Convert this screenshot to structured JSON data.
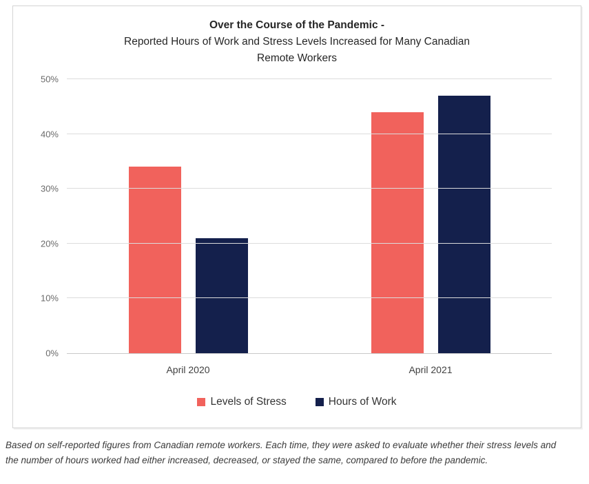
{
  "chart_data": {
    "type": "bar",
    "title_line1": "Over the Course of the Pandemic -",
    "title_line2": "Reported Hours of Work and Stress Levels Increased for Many Canadian",
    "title_line3": "Remote Workers",
    "categories": [
      "April 2020",
      "April 2021"
    ],
    "series": [
      {
        "name": "Levels of Stress",
        "color": "#f1625c",
        "values": [
          34,
          44
        ]
      },
      {
        "name": "Hours of Work",
        "color": "#14204c",
        "values": [
          21,
          47
        ]
      }
    ],
    "ylim": [
      0,
      50
    ],
    "yticks": [
      0,
      10,
      20,
      30,
      40,
      50
    ],
    "ytick_labels": [
      "0%",
      "10%",
      "20%",
      "30%",
      "40%",
      "50%"
    ],
    "grid": "horizontal",
    "legend_position": "bottom",
    "xlabel": "",
    "ylabel": ""
  },
  "footnote": "Based on self-reported figures from Canadian remote workers. Each time, they were asked to evaluate whether their stress levels and the number of hours worked had either increased, decreased, or stayed the same, compared to before the pandemic.",
  "colors": {
    "stress": "#f1625c",
    "hours": "#14204c",
    "gridline": "#dcdcdc",
    "border": "#d4d4d4"
  }
}
